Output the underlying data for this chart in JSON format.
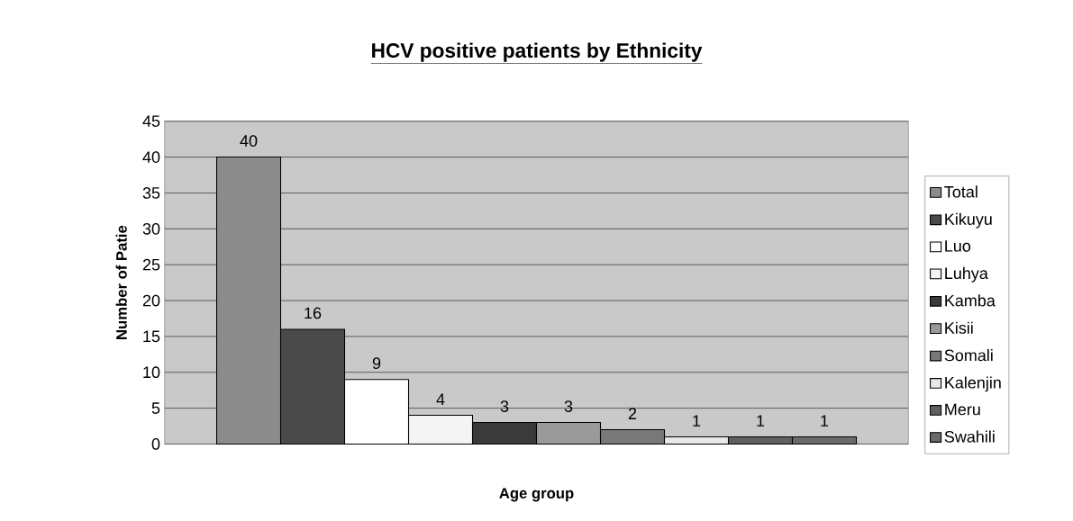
{
  "chart_data": {
    "type": "bar",
    "title": "HCV positive patients by Ethnicity",
    "xlabel": "Age group",
    "ylabel": "Number of Patie",
    "categories": [
      null
    ],
    "series": [
      {
        "name": "Total",
        "color": "#8c8c8c",
        "values": [
          40
        ]
      },
      {
        "name": "Kikuyu",
        "color": "#4a4a4a",
        "values": [
          16
        ]
      },
      {
        "name": "Luo",
        "color": "#ffffff",
        "values": [
          9
        ]
      },
      {
        "name": "Luhya",
        "color": "#f4f4f4",
        "values": [
          4
        ]
      },
      {
        "name": "Kamba",
        "color": "#3a3a3a",
        "values": [
          3
        ]
      },
      {
        "name": "Kisii",
        "color": "#9a9a9a",
        "values": [
          3
        ]
      },
      {
        "name": "Somali",
        "color": "#787878",
        "values": [
          2
        ]
      },
      {
        "name": "Kalenjin",
        "color": "#e8e8e8",
        "values": [
          1
        ]
      },
      {
        "name": "Meru",
        "color": "#606060",
        "values": [
          1
        ]
      },
      {
        "name": "Swahili",
        "color": "#6a6a6a",
        "values": [
          1
        ]
      }
    ],
    "ylim": [
      0,
      45
    ],
    "yticks": [
      0,
      5,
      10,
      15,
      20,
      25,
      30,
      35,
      40,
      45
    ],
    "grid": "y",
    "legend": "right",
    "data_labels": true
  }
}
